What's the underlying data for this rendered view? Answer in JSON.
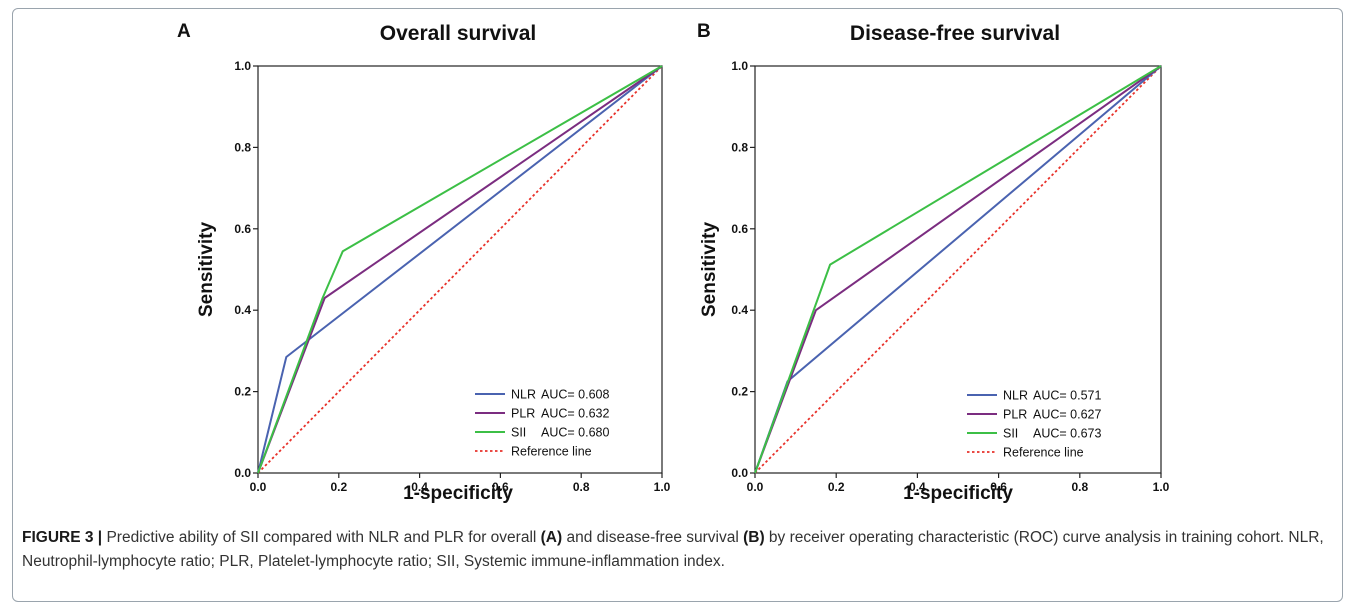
{
  "chart_data": [
    {
      "type": "line",
      "panel_letter": "A",
      "title": "Overall survival",
      "xlabel": "1-specificity",
      "ylabel": "Sensitivity",
      "xlim": [
        0,
        1
      ],
      "ylim": [
        0,
        1
      ],
      "xticks": [
        "0.0",
        "0.2",
        "0.4",
        "0.6",
        "0.8",
        "1.0"
      ],
      "yticks": [
        "0.0",
        "0.2",
        "0.4",
        "0.6",
        "0.8",
        "1.0"
      ],
      "grid": false,
      "legend_position": "bottom-right",
      "series": [
        {
          "name": "NLR",
          "auc_label": "AUC= 0.608",
          "color": "#4a63b0",
          "style": "solid",
          "points": [
            [
              0,
              0
            ],
            [
              0.07,
              0.285
            ],
            [
              1,
              1
            ]
          ]
        },
        {
          "name": "PLR",
          "auc_label": "AUC= 0.632",
          "color": "#7b2d80",
          "style": "solid",
          "points": [
            [
              0,
              0
            ],
            [
              0.165,
              0.43
            ],
            [
              1,
              1
            ]
          ]
        },
        {
          "name": "SII",
          "auc_label": "AUC= 0.680",
          "color": "#3cbf46",
          "style": "solid",
          "points": [
            [
              0,
              0
            ],
            [
              0.16,
              0.43
            ],
            [
              0.21,
              0.545
            ],
            [
              1,
              1
            ]
          ]
        },
        {
          "name": "Reference line",
          "auc_label": "",
          "color": "#e8322b",
          "style": "dotted",
          "points": [
            [
              0,
              0
            ],
            [
              1,
              1
            ]
          ]
        }
      ]
    },
    {
      "type": "line",
      "panel_letter": "B",
      "title": "Disease-free survival",
      "xlabel": "1-specificity",
      "ylabel": "Sensitivity",
      "xlim": [
        0,
        1
      ],
      "ylim": [
        0,
        1
      ],
      "xticks": [
        "0.0",
        "0.2",
        "0.4",
        "0.6",
        "0.8",
        "1.0"
      ],
      "yticks": [
        "0.0",
        "0.2",
        "0.4",
        "0.6",
        "0.8",
        "1.0"
      ],
      "grid": false,
      "legend_position": "bottom-right",
      "series": [
        {
          "name": "NLR",
          "auc_label": "AUC= 0.571",
          "color": "#4a63b0",
          "style": "solid",
          "points": [
            [
              0,
              0
            ],
            [
              0.08,
              0.225
            ],
            [
              1,
              1
            ]
          ]
        },
        {
          "name": "PLR",
          "auc_label": "AUC= 0.627",
          "color": "#7b2d80",
          "style": "solid",
          "points": [
            [
              0,
              0
            ],
            [
              0.15,
              0.4
            ],
            [
              1,
              1
            ]
          ]
        },
        {
          "name": "SII",
          "auc_label": "AUC= 0.673",
          "color": "#3cbf46",
          "style": "solid",
          "points": [
            [
              0,
              0
            ],
            [
              0.185,
              0.512
            ],
            [
              1,
              1
            ]
          ]
        },
        {
          "name": "Reference line",
          "auc_label": "",
          "color": "#e8322b",
          "style": "dotted",
          "points": [
            [
              0,
              0
            ],
            [
              1,
              1
            ]
          ]
        }
      ]
    }
  ],
  "caption": {
    "figure_label": "FIGURE 3 |",
    "text_1": " Predictive ability of SII compared with NLR and PLR for overall ",
    "ref_a": "(A)",
    "text_2": " and disease-free survival ",
    "ref_b": "(B)",
    "text_3": " by receiver operating characteristic (ROC) curve analysis in training cohort. NLR, Neutrophil-lymphocyte ratio; PLR, Platelet-lymphocyte ratio; SII, Systemic immune-inflammation index."
  }
}
